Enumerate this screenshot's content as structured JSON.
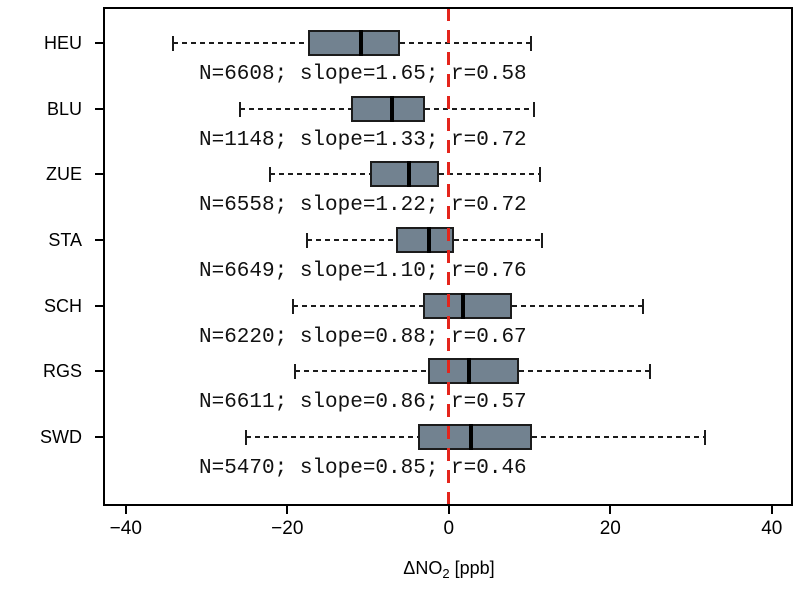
{
  "chart_data": {
    "type": "boxplot",
    "orientation": "horizontal",
    "title": "",
    "xlabel_prefix": "ΔNO",
    "xlabel_sub": "2",
    "xlabel_suffix": " [ppb]",
    "x_ticks": [
      -40,
      -20,
      0,
      20,
      40
    ],
    "x_tick_labels": [
      "−40",
      "−20",
      "0",
      "20",
      "40"
    ],
    "xlim": [
      -42.7,
      42.5
    ],
    "grid": false,
    "reference_line": {
      "x": 0,
      "style": "dashed",
      "color": "#e4251c"
    },
    "categories": [
      "HEU",
      "BLU",
      "ZUE",
      "STA",
      "SCH",
      "RGS",
      "SWD"
    ],
    "series": [
      {
        "station": "HEU",
        "whisker_low": -34.1,
        "q1": -17.4,
        "median": -10.9,
        "q3": -6.1,
        "whisker_high": 10.2,
        "annotation": "N=6608; slope=1.65; r=0.58"
      },
      {
        "station": "BLU",
        "whisker_low": -25.9,
        "q1": -12.1,
        "median": -7.0,
        "q3": -3.0,
        "whisker_high": 10.6,
        "annotation": "N=1148; slope=1.33; r=0.72"
      },
      {
        "station": "ZUE",
        "whisker_low": -22.1,
        "q1": -9.7,
        "median": -4.9,
        "q3": -1.2,
        "whisker_high": 11.3,
        "annotation": "N=6558; slope=1.22; r=0.72"
      },
      {
        "station": "STA",
        "whisker_low": -17.5,
        "q1": -6.6,
        "median": -2.5,
        "q3": 0.6,
        "whisker_high": 11.5,
        "annotation": "N=6649; slope=1.10; r=0.76"
      },
      {
        "station": "SCH",
        "whisker_low": -19.3,
        "q1": -3.2,
        "median": 1.8,
        "q3": 7.8,
        "whisker_high": 24.0,
        "annotation": "N=6220; slope=0.88; r=0.67"
      },
      {
        "station": "RGS",
        "whisker_low": -19.1,
        "q1": -2.6,
        "median": 2.5,
        "q3": 8.7,
        "whisker_high": 24.9,
        "annotation": "N=6611; slope=0.86; r=0.57"
      },
      {
        "station": "SWD",
        "whisker_low": -25.1,
        "q1": -3.8,
        "median": 2.7,
        "q3": 10.3,
        "whisker_high": 31.7,
        "annotation": "N=5470; slope=0.85; r=0.46"
      }
    ],
    "colors": {
      "box_fill": "#728290",
      "box_border": "#1c1c1c",
      "median": "#000000",
      "whisker": "#1c1c1c",
      "reference": "#e4251c",
      "frame": "#000000",
      "text": "#000000"
    }
  }
}
